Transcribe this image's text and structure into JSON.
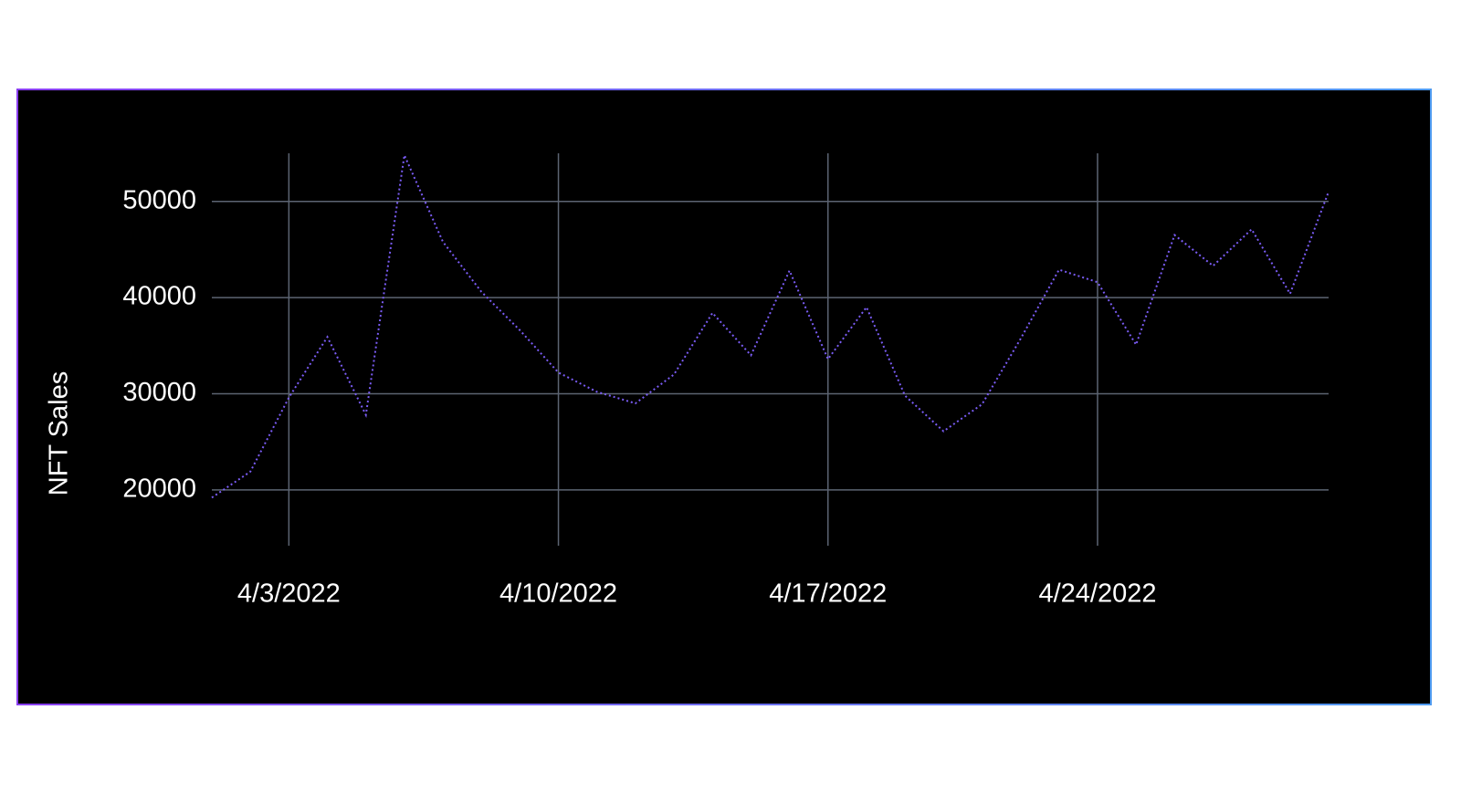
{
  "chart_data": {
    "type": "line",
    "y_label": "NFT Sales",
    "x": [
      "4/1/2022",
      "4/2/2022",
      "4/3/2022",
      "4/4/2022",
      "4/5/2022",
      "4/6/2022",
      "4/7/2022",
      "4/8/2022",
      "4/9/2022",
      "4/10/2022",
      "4/11/2022",
      "4/12/2022",
      "4/13/2022",
      "4/14/2022",
      "4/15/2022",
      "4/16/2022",
      "4/17/2022",
      "4/18/2022",
      "4/19/2022",
      "4/20/2022",
      "4/21/2022",
      "4/22/2022",
      "4/23/2022",
      "4/24/2022",
      "4/25/2022",
      "4/26/2022",
      "4/27/2022",
      "4/28/2022",
      "4/29/2022",
      "4/30/2022"
    ],
    "series": [
      {
        "name": "NFT Sales",
        "color": "#7a5cf5",
        "values": [
          19200,
          21900,
          29600,
          35900,
          27800,
          54800,
          45800,
          40600,
          36600,
          32200,
          30200,
          29000,
          32000,
          38400,
          34000,
          42800,
          33600,
          39000,
          29800,
          26100,
          28900,
          35700,
          42900,
          41600,
          35100,
          46500,
          43300,
          47100,
          40400,
          51000
        ]
      }
    ],
    "xticks": [
      "4/3/2022",
      "4/10/2022",
      "4/17/2022",
      "4/24/2022"
    ],
    "ylim": [
      14200,
      55000
    ],
    "yticks": [
      20000,
      30000,
      40000,
      50000
    ],
    "grid": true,
    "grid_color": "#5c6472"
  }
}
